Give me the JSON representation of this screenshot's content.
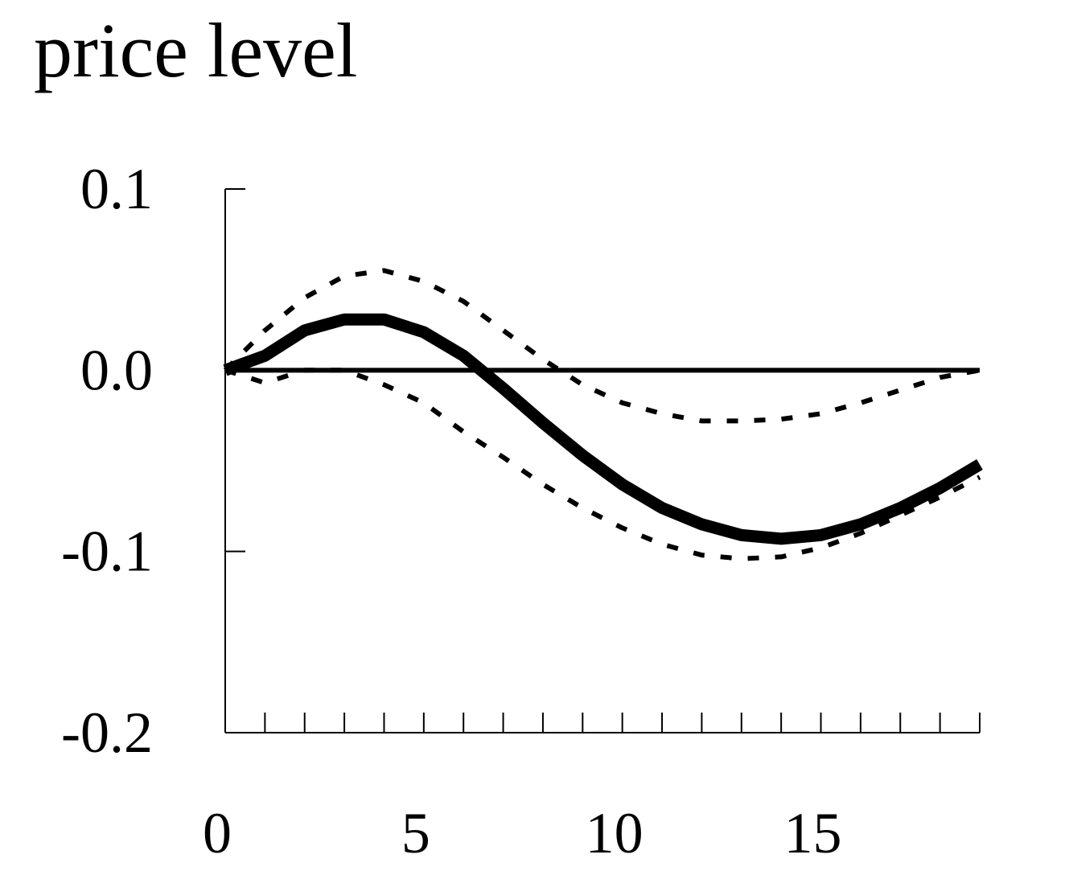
{
  "chart_data": {
    "type": "line",
    "title": "price level",
    "xlabel": "",
    "ylabel": "",
    "xlim": [
      0,
      19
    ],
    "ylim": [
      -0.2,
      0.1
    ],
    "x_ticks": [
      0,
      5,
      10,
      15
    ],
    "y_ticks": [
      0.1,
      0.0,
      -0.1,
      -0.2
    ],
    "x_tick_labels": [
      "0",
      "5",
      "10",
      "15"
    ],
    "y_tick_labels": [
      "0.1",
      "0.0",
      "-0.1",
      "-0.2"
    ],
    "grid": false,
    "legend": "none",
    "zero_line": true,
    "x": [
      0,
      1,
      2,
      3,
      4,
      5,
      6,
      7,
      8,
      9,
      10,
      11,
      12,
      13,
      14,
      15,
      16,
      17,
      18,
      19
    ],
    "series": [
      {
        "role": "point-estimate",
        "style": "solid-thick",
        "color": "#000000",
        "values": [
          0.0,
          0.008,
          0.022,
          0.028,
          0.028,
          0.021,
          0.008,
          -0.01,
          -0.029,
          -0.047,
          -0.063,
          -0.076,
          -0.085,
          -0.091,
          -0.093,
          -0.091,
          -0.085,
          -0.076,
          -0.065,
          -0.052
        ]
      },
      {
        "role": "upper-band",
        "style": "dotted",
        "color": "#000000",
        "values": [
          0.0,
          0.022,
          0.04,
          0.052,
          0.055,
          0.049,
          0.038,
          0.022,
          0.006,
          -0.008,
          -0.018,
          -0.024,
          -0.028,
          -0.028,
          -0.027,
          -0.024,
          -0.018,
          -0.011,
          -0.004,
          0.0
        ]
      },
      {
        "role": "lower-band",
        "style": "dotted",
        "color": "#000000",
        "values": [
          0.0,
          -0.007,
          0.0,
          0.0,
          -0.008,
          -0.018,
          -0.034,
          -0.048,
          -0.063,
          -0.076,
          -0.087,
          -0.096,
          -0.102,
          -0.104,
          -0.103,
          -0.098,
          -0.09,
          -0.08,
          -0.07,
          -0.059
        ]
      }
    ]
  }
}
